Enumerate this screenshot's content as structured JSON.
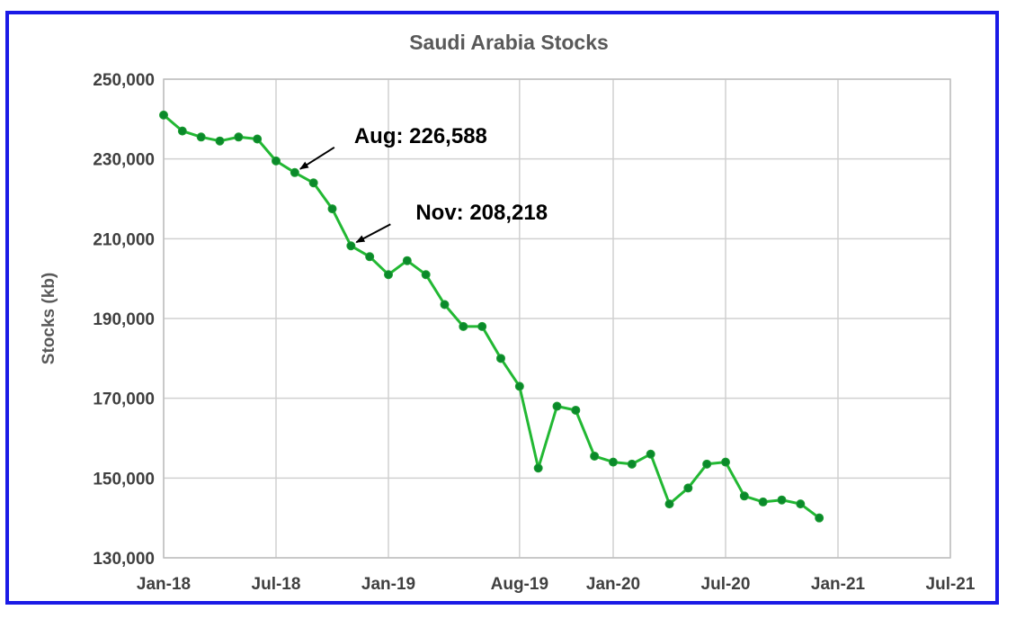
{
  "chart_data": {
    "type": "line",
    "title": "Saudi Arabia Stocks",
    "xlabel": "",
    "ylabel": "Stocks (kb)",
    "ylim": [
      130000,
      250000
    ],
    "yticks": [
      130000,
      150000,
      170000,
      190000,
      210000,
      230000,
      250000
    ],
    "ytick_labels": [
      "130,000",
      "150,000",
      "170,000",
      "190,000",
      "210,000",
      "230,000",
      "250,000"
    ],
    "xlim": [
      "2018-01",
      "2021-07"
    ],
    "xticks": [
      "2018-01",
      "2018-07",
      "2019-01",
      "2019-08",
      "2020-01",
      "2020-07",
      "2021-01",
      "2021-07"
    ],
    "xtick_labels": [
      "Jan-18",
      "Jul-18",
      "Jan-19",
      "Aug-19",
      "Jan-20",
      "Jul-20",
      "Jan-21",
      "Jul-21"
    ],
    "grid": true,
    "line_color": "#22b833",
    "marker_color": "#0a8a2a",
    "series": [
      {
        "x": [
          "2018-01",
          "2018-02",
          "2018-03",
          "2018-04",
          "2018-05",
          "2018-06",
          "2018-07",
          "2018-08",
          "2018-09",
          "2018-10",
          "2018-11",
          "2018-12",
          "2019-01",
          "2019-02",
          "2019-03",
          "2019-04",
          "2019-05",
          "2019-06",
          "2019-07",
          "2019-08",
          "2019-09",
          "2019-10",
          "2019-11",
          "2019-12",
          "2020-01",
          "2020-02",
          "2020-03",
          "2020-04",
          "2020-05",
          "2020-06",
          "2020-07",
          "2020-08",
          "2020-09",
          "2020-10",
          "2020-11",
          "2020-12"
        ],
        "values": [
          241000,
          237000,
          235500,
          234500,
          235500,
          235000,
          229500,
          226588,
          224000,
          217500,
          208218,
          205500,
          201000,
          204500,
          201000,
          193500,
          188000,
          188000,
          180000,
          173000,
          152500,
          168000,
          167000,
          155500,
          154000,
          153500,
          156000,
          143500,
          147500,
          153500,
          154000,
          145500,
          144000,
          144500,
          143500,
          140000
        ]
      }
    ],
    "annotations": [
      {
        "text": "Aug: 226,588",
        "x": "2018-08",
        "y": 226588
      },
      {
        "text": "Nov: 208,218",
        "x": "2018-11",
        "y": 208218
      }
    ]
  }
}
